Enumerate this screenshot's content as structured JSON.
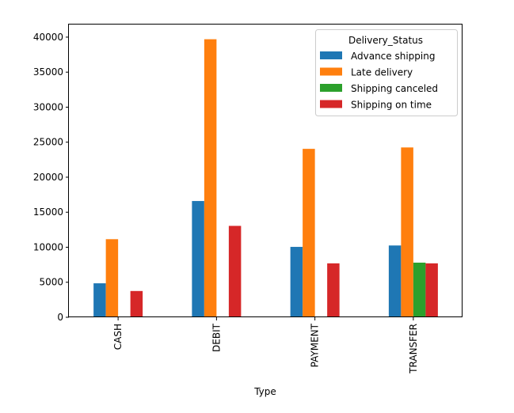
{
  "chart_data": {
    "type": "bar",
    "xlabel": "Type",
    "ylabel": "",
    "categories": [
      "CASH",
      "DEBIT",
      "PAYMENT",
      "TRANSFER"
    ],
    "ylim": [
      0,
      41800
    ],
    "yticks": [
      0,
      5000,
      10000,
      15000,
      20000,
      25000,
      30000,
      35000,
      40000
    ],
    "grid": false,
    "legend": {
      "title": "Delivery_Status",
      "position": "top-right"
    },
    "series": [
      {
        "name": "Advance shipping",
        "color": "#1f77b4",
        "values": [
          4850,
          16600,
          10050,
          10250
        ]
      },
      {
        "name": "Late delivery",
        "color": "#ff7f0e",
        "values": [
          11150,
          39700,
          24050,
          24250
        ]
      },
      {
        "name": "Shipping canceled",
        "color": "#2ca02c",
        "values": [
          0,
          0,
          0,
          7800
        ]
      },
      {
        "name": "Shipping on time",
        "color": "#d62728",
        "values": [
          3750,
          13050,
          7700,
          7700
        ]
      }
    ]
  }
}
